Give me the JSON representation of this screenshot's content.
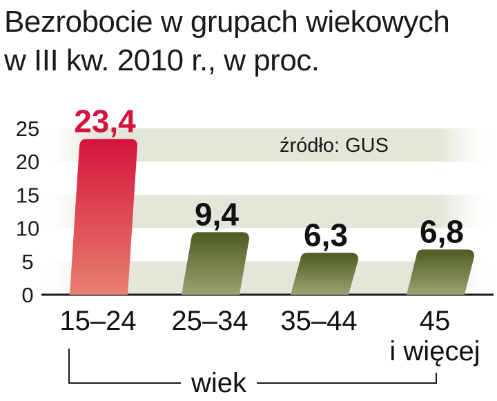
{
  "chart_data": {
    "type": "bar",
    "title_lines": [
      "Bezrobocie w grupach wiekowych",
      "w III kw. 2010 r., w proc."
    ],
    "categories": [
      [
        "15–24"
      ],
      [
        "25–34"
      ],
      [
        "35–44"
      ],
      [
        "45",
        "i więcej"
      ]
    ],
    "values": [
      23.4,
      9.4,
      6.3,
      6.8
    ],
    "value_labels": [
      "23,4",
      "9,4",
      "6,3",
      "6,8"
    ],
    "yticks": [
      "0",
      "5",
      "10",
      "15",
      "20",
      "25"
    ],
    "ylim": [
      0,
      25
    ],
    "xlabel": "wiek",
    "source": "źródło: GUS",
    "colors": {
      "highlight_bar_top": "#d4143c",
      "highlight_bar_bottom": "#e88070",
      "bar_top": "#4e5a22",
      "bar_bottom": "#9aa472",
      "highlight_label": "#d4143c",
      "label": "#111111",
      "band": "#e3e6d8"
    },
    "highlight_index": 0
  }
}
